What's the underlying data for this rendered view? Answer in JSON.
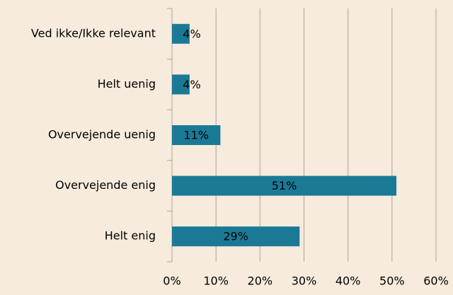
{
  "chart_data": {
    "type": "bar",
    "orientation": "horizontal",
    "categories": [
      "Ved ikke/Ikke relevant",
      "Helt uenig",
      "Overvejende uenig",
      "Overvejende enig",
      "Helt enig"
    ],
    "values": [
      4,
      4,
      11,
      51,
      29
    ],
    "value_labels": [
      "4%",
      "4%",
      "11%",
      "51%",
      "29%"
    ],
    "color": "#1a7a96",
    "xlim": [
      0,
      60
    ],
    "xticks": [
      {
        "value": 0,
        "label": "0%"
      },
      {
        "value": 10,
        "label": "10%"
      },
      {
        "value": 20,
        "label": "20%"
      },
      {
        "value": 30,
        "label": "30%"
      },
      {
        "value": 40,
        "label": "40%"
      },
      {
        "value": 50,
        "label": "50%"
      },
      {
        "value": 60,
        "label": "60%"
      }
    ],
    "grid": true
  }
}
